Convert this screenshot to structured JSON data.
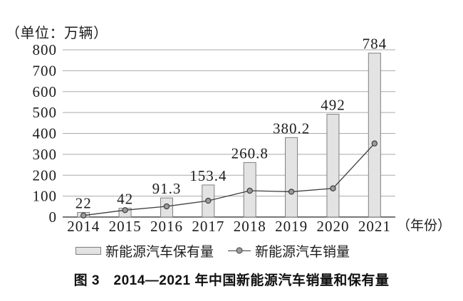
{
  "chart_data": {
    "type": "bar",
    "categories": [
      "2014",
      "2015",
      "2016",
      "2017",
      "2018",
      "2019",
      "2020",
      "2021"
    ],
    "series": [
      {
        "name": "新能源汽车保有量",
        "kind": "bar",
        "values": [
          22,
          42,
          91.3,
          153.4,
          260.8,
          380.2,
          492,
          784
        ],
        "data_labels": [
          "22",
          "42",
          "91.3",
          "153.4",
          "260.8",
          "380.2",
          "492",
          "784"
        ]
      },
      {
        "name": "新能源汽车销量",
        "kind": "line",
        "values": [
          7.5,
          33,
          51,
          78,
          126,
          121,
          137,
          352
        ],
        "values_estimated": true
      }
    ],
    "title": "图 3　2014—2021 年中国新能源汽车销量和保有量",
    "xlabel": "（年份）",
    "ylabel": "（单位：万辆）",
    "y_ticks": [
      0,
      100,
      200,
      300,
      400,
      500,
      600,
      700,
      800
    ],
    "ylim": [
      0,
      800
    ],
    "grid": true,
    "legend_position": "bottom",
    "colors": {
      "bar_fill": "#e3e3e3",
      "bar_border": "#7f7f7f",
      "line": "#3d3d3d",
      "marker_fill": "#9b9b9b",
      "marker_border": "#3d3d3d",
      "grid": "#aaaaaa",
      "axis": "#4a4a4a",
      "text": "#1c1c1c"
    }
  }
}
